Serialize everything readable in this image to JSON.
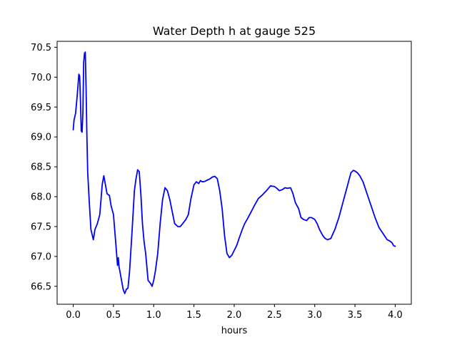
{
  "chart_data": {
    "type": "line",
    "title": "Water Depth h at gauge 525",
    "xlabel": "hours",
    "ylabel": "",
    "xlim": [
      -0.2,
      4.2
    ],
    "ylim": [
      66.2,
      70.6
    ],
    "xticks": [
      0.0,
      0.5,
      1.0,
      1.5,
      2.0,
      2.5,
      3.0,
      3.5,
      4.0
    ],
    "xtick_labels": [
      "0.0",
      "0.5",
      "1.0",
      "1.5",
      "2.0",
      "2.5",
      "3.0",
      "3.5",
      "4.0"
    ],
    "yticks": [
      66.5,
      67.0,
      67.5,
      68.0,
      68.5,
      69.0,
      69.5,
      70.0,
      70.5
    ],
    "ytick_labels": [
      "66.5",
      "67.0",
      "67.5",
      "68.0",
      "68.5",
      "69.0",
      "69.5",
      "70.0",
      "70.5"
    ],
    "grid": false,
    "series": [
      {
        "color": "#0000ff",
        "x": [
          0.0,
          0.01,
          0.03,
          0.05,
          0.07,
          0.08,
          0.09,
          0.1,
          0.11,
          0.12,
          0.13,
          0.14,
          0.15,
          0.16,
          0.17,
          0.18,
          0.2,
          0.22,
          0.25,
          0.27,
          0.3,
          0.33,
          0.36,
          0.38,
          0.4,
          0.42,
          0.45,
          0.47,
          0.5,
          0.53,
          0.55,
          0.56,
          0.57,
          0.58,
          0.6,
          0.62,
          0.64,
          0.66,
          0.68,
          0.7,
          0.73,
          0.76,
          0.78,
          0.8,
          0.82,
          0.84,
          0.86,
          0.88,
          0.9,
          0.93,
          0.96,
          0.98,
          1.0,
          1.02,
          1.05,
          1.08,
          1.11,
          1.14,
          1.17,
          1.2,
          1.23,
          1.26,
          1.3,
          1.33,
          1.36,
          1.4,
          1.43,
          1.46,
          1.5,
          1.53,
          1.56,
          1.58,
          1.6,
          1.62,
          1.64,
          1.67,
          1.7,
          1.73,
          1.76,
          1.79,
          1.82,
          1.85,
          1.88,
          1.91,
          1.94,
          1.97,
          2.0,
          2.03,
          2.06,
          2.1,
          2.13,
          2.16,
          2.2,
          2.25,
          2.3,
          2.35,
          2.4,
          2.45,
          2.5,
          2.53,
          2.56,
          2.6,
          2.63,
          2.66,
          2.7,
          2.73,
          2.76,
          2.8,
          2.83,
          2.86,
          2.9,
          2.93,
          2.96,
          3.0,
          3.03,
          3.06,
          3.1,
          3.13,
          3.16,
          3.2,
          3.25,
          3.3,
          3.35,
          3.4,
          3.45,
          3.48,
          3.5,
          3.53,
          3.56,
          3.6,
          3.65,
          3.7,
          3.75,
          3.8,
          3.85,
          3.9,
          3.93,
          3.96,
          3.98,
          4.0
        ],
        "values": [
          69.12,
          69.28,
          69.4,
          69.7,
          70.05,
          70.02,
          69.6,
          69.1,
          69.08,
          69.4,
          70.25,
          70.4,
          70.42,
          69.8,
          69.0,
          68.4,
          67.9,
          67.45,
          67.28,
          67.45,
          67.55,
          67.7,
          68.2,
          68.35,
          68.2,
          68.05,
          68.02,
          67.85,
          67.7,
          67.2,
          66.85,
          66.98,
          66.82,
          66.75,
          66.6,
          66.45,
          66.38,
          66.45,
          66.47,
          66.75,
          67.4,
          68.1,
          68.3,
          68.45,
          68.42,
          68.05,
          67.55,
          67.25,
          67.05,
          66.6,
          66.55,
          66.5,
          66.6,
          66.75,
          67.05,
          67.55,
          67.95,
          68.15,
          68.1,
          67.95,
          67.75,
          67.55,
          67.5,
          67.5,
          67.55,
          67.62,
          67.7,
          67.95,
          68.2,
          68.25,
          68.22,
          68.27,
          68.25,
          68.25,
          68.26,
          68.28,
          68.3,
          68.33,
          68.34,
          68.3,
          68.1,
          67.8,
          67.35,
          67.05,
          66.98,
          67.02,
          67.1,
          67.18,
          67.3,
          67.45,
          67.55,
          67.62,
          67.72,
          67.85,
          67.97,
          68.03,
          68.1,
          68.18,
          68.17,
          68.14,
          68.1,
          68.12,
          68.15,
          68.14,
          68.15,
          68.05,
          67.9,
          67.8,
          67.65,
          67.62,
          67.6,
          67.65,
          67.65,
          67.62,
          67.55,
          67.45,
          67.35,
          67.3,
          67.28,
          67.3,
          67.45,
          67.65,
          67.9,
          68.15,
          68.4,
          68.44,
          68.43,
          68.4,
          68.35,
          68.25,
          68.05,
          67.85,
          67.65,
          67.48,
          67.38,
          67.28,
          67.26,
          67.23,
          67.18,
          67.17
        ]
      }
    ]
  }
}
